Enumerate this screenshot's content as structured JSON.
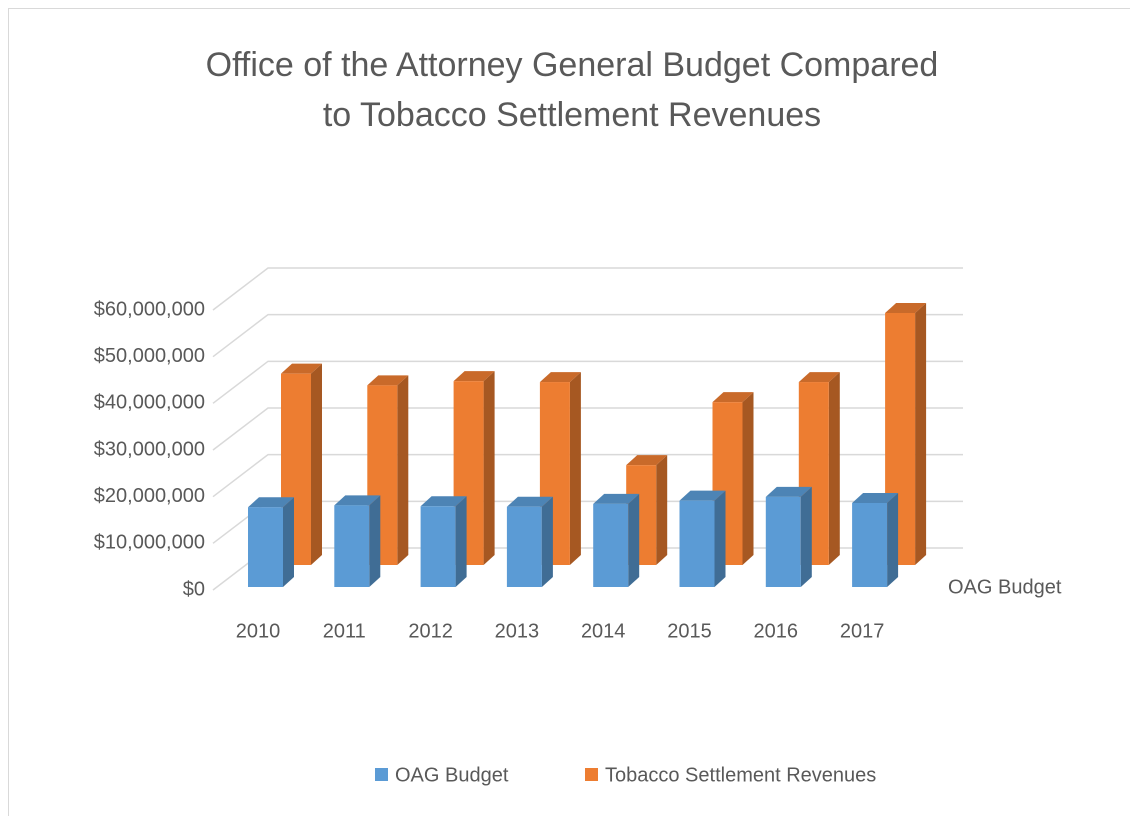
{
  "chart_data": {
    "type": "bar3d",
    "title": [
      "Office of the Attorney General Budget Compared",
      "to Tobacco Settlement Revenues"
    ],
    "categories": [
      "2010",
      "2011",
      "2012",
      "2013",
      "2014",
      "2015",
      "2016",
      "2017"
    ],
    "series": [
      {
        "name": "OAG Budget",
        "color": "#5b9bd5",
        "values": [
          17100000,
          17500000,
          17300000,
          17200000,
          17800000,
          18500000,
          19300000,
          18000000
        ]
      },
      {
        "name": "Tobacco Settlement Revenues",
        "color": "#ed7d31",
        "values": [
          41000000,
          38500000,
          39400000,
          39200000,
          21400000,
          34900000,
          39200000,
          54000000
        ]
      }
    ],
    "ylim": [
      0,
      60000000
    ],
    "yticks": [
      {
        "value": 0,
        "label": "$0"
      },
      {
        "value": 10000000,
        "label": "$10,000,000"
      },
      {
        "value": 20000000,
        "label": "$20,000,000"
      },
      {
        "value": 30000000,
        "label": "$30,000,000"
      },
      {
        "value": 40000000,
        "label": "$40,000,000"
      },
      {
        "value": 50000000,
        "label": "$50,000,000"
      },
      {
        "value": 60000000,
        "label": "$60,000,000"
      }
    ],
    "grid": true,
    "legend": "bottom"
  }
}
